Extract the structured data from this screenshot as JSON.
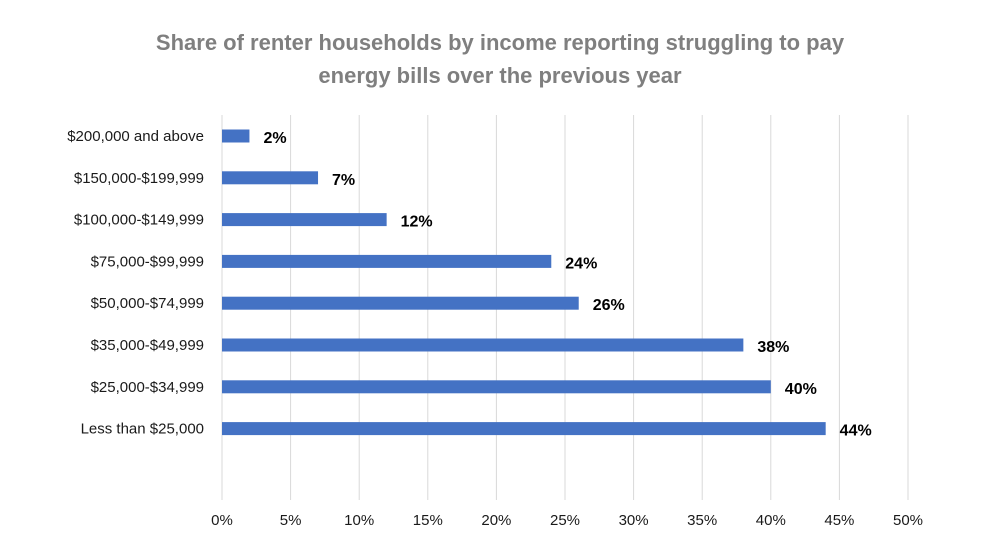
{
  "title_lines": [
    "Share of renter households by income reporting struggling to pay",
    "energy bills over the previous year"
  ],
  "colors": {
    "bar": "#4472c4",
    "grid": "#d9d9d9",
    "title": "#7f7f7f"
  },
  "chart_data": {
    "type": "bar",
    "orientation": "horizontal",
    "title": "Share of renter households by income reporting struggling to pay energy bills over the previous year",
    "xlabel": "",
    "ylabel": "",
    "categories": [
      "$200,000 and above",
      "$150,000-$199,999",
      "$100,000-$149,999",
      "$75,000-$99,999",
      "$50,000-$74,999",
      "$35,000-$49,999",
      "$25,000-$34,999",
      "Less than $25,000"
    ],
    "values": [
      2,
      7,
      12,
      24,
      26,
      38,
      40,
      44
    ],
    "data_labels": [
      "2%",
      "7%",
      "12%",
      "24%",
      "26%",
      "38%",
      "40%",
      "44%"
    ],
    "xlim": [
      0,
      50
    ],
    "x_ticks": [
      0,
      5,
      10,
      15,
      20,
      25,
      30,
      35,
      40,
      45,
      50
    ],
    "x_tick_labels": [
      "0%",
      "5%",
      "10%",
      "15%",
      "20%",
      "25%",
      "30%",
      "35%",
      "40%",
      "45%",
      "50%"
    ],
    "grid": "vertical",
    "legend": "none"
  }
}
